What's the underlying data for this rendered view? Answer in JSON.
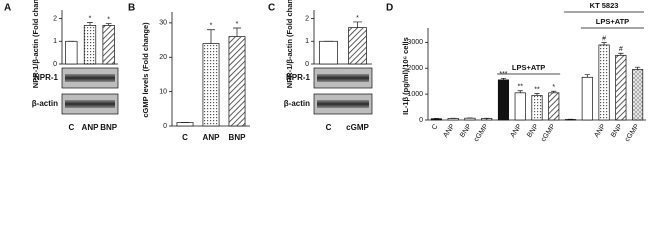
{
  "chart_data": [
    {
      "type": "bar",
      "panel": "A",
      "y_label": "NPR-1/β-actin (Fold change)",
      "categories": [
        "C",
        "ANP",
        "BNP"
      ],
      "values": [
        1,
        1.7,
        1.7
      ],
      "errors": [
        0,
        0.12,
        0.08
      ],
      "markers": [
        null,
        "*",
        "*"
      ],
      "fills": [
        "white",
        "dots",
        "hatch"
      ],
      "ylim": [
        0,
        2.2
      ],
      "yticks": [
        0,
        1,
        2
      ],
      "blot_labels": [
        "NPR-1",
        "β-actin"
      ]
    },
    {
      "type": "bar",
      "panel": "B",
      "y_label": "cGMP levels (Fold change)",
      "categories": [
        "C",
        "ANP",
        "BNP"
      ],
      "values": [
        1,
        24,
        26
      ],
      "errors": [
        0,
        4,
        2.5
      ],
      "markers": [
        null,
        "*",
        "*"
      ],
      "fills": [
        "white",
        "dots",
        "hatch"
      ],
      "ylim": [
        0,
        32
      ],
      "yticks": [
        0,
        10,
        20,
        30
      ]
    },
    {
      "type": "bar",
      "panel": "C",
      "y_label": "NPR-1/β-actin (Fold change)",
      "categories": [
        "C",
        "cGMP"
      ],
      "values": [
        1,
        1.6
      ],
      "errors": [
        0,
        0.25
      ],
      "markers": [
        null,
        "*"
      ],
      "fills": [
        "white",
        "hatch"
      ],
      "ylim": [
        0,
        2.2
      ],
      "yticks": [
        0,
        1,
        2
      ],
      "blot_labels": [
        "NPR-1",
        "β-actin"
      ]
    },
    {
      "type": "bar",
      "panel": "D",
      "y_label": "IL-1β (pg/ml)/10⁶ cells",
      "categories": [
        "C",
        "ANP",
        "BNP",
        "cGMP",
        null,
        "ANP",
        "BNP",
        "cGMP",
        null,
        null,
        "ANP",
        "BNP",
        "cGMP"
      ],
      "values": [
        50,
        60,
        70,
        60,
        1550,
        1050,
        950,
        1050,
        20,
        1650,
        2900,
        2500,
        1950
      ],
      "errors": [
        10,
        10,
        10,
        10,
        60,
        80,
        70,
        60,
        10,
        100,
        90,
        80,
        90
      ],
      "markers": [
        null,
        null,
        null,
        null,
        "***",
        "**",
        "**",
        "*",
        null,
        null,
        "#",
        "#",
        null
      ],
      "fills": [
        "black",
        "white",
        "dots",
        "hatch",
        "black",
        "white",
        "dots",
        "hatch",
        "black",
        "white",
        "dots",
        "hatch",
        "cross"
      ],
      "ylim": [
        0,
        3400
      ],
      "yticks": [
        0,
        1000,
        2000,
        3000
      ],
      "group_labels": [
        "LPS+ATP",
        "KT 5823",
        "LPS+ATP"
      ]
    }
  ]
}
